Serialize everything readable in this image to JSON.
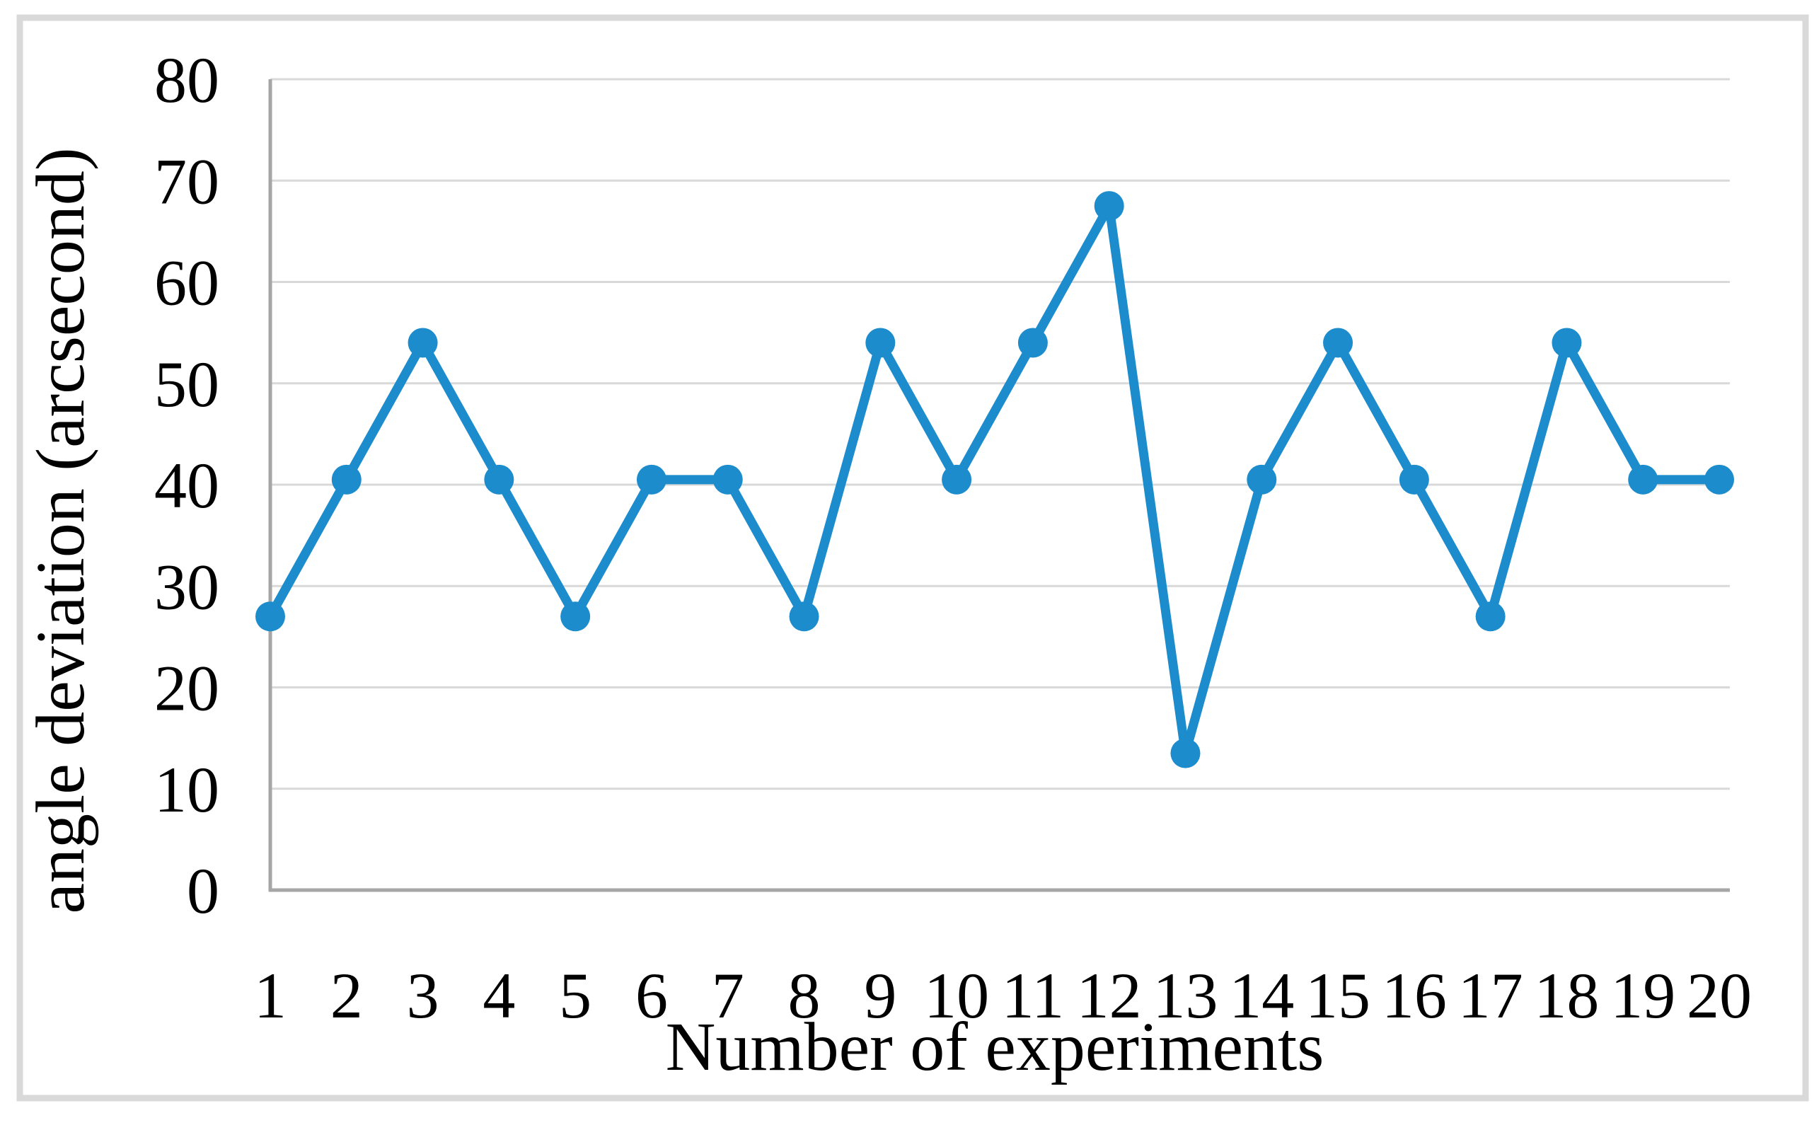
{
  "figure": {
    "background": "#ffffff",
    "frame_color": "#d9d9d9"
  },
  "chart_data": {
    "type": "line",
    "title": "",
    "xlabel": "Number of experiments",
    "ylabel": "angle deviation (arcsecond)",
    "categories": [
      1,
      2,
      3,
      4,
      5,
      6,
      7,
      8,
      9,
      10,
      11,
      12,
      13,
      14,
      15,
      16,
      17,
      18,
      19,
      20
    ],
    "series": [
      {
        "name": "angle deviation",
        "values": [
          27,
          40.5,
          54,
          40.5,
          27,
          40.5,
          40.5,
          27,
          54,
          40.5,
          54,
          67.5,
          13.5,
          40.5,
          54,
          40.5,
          27,
          54,
          40.5,
          40.5
        ]
      }
    ],
    "ylim": [
      0,
      80
    ],
    "yticks": [
      0,
      10,
      20,
      30,
      40,
      50,
      60,
      70,
      80
    ],
    "grid": "horizontal",
    "legend": "none",
    "line_color": "#1d8ccd",
    "marker": "circle",
    "marker_color": "#1d8ccd",
    "gridline_color": "#d9d9d9",
    "axis_color": "#a6a6a6",
    "text_color": "#000000"
  }
}
